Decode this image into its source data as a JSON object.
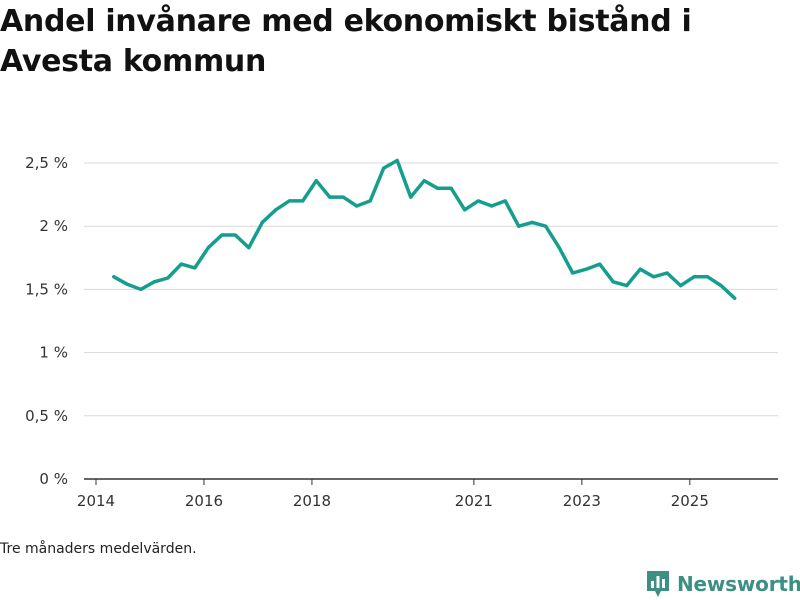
{
  "title": "Andel invånare med ekonomiskt bistånd i Avesta kommun",
  "footnote": "Tre månaders medelvärden.",
  "brand": {
    "name": "Newsworthy",
    "color": "#3d8f83",
    "icon": "bar-chart-logo-icon"
  },
  "colors": {
    "line": "#159e8e",
    "grid": "#d9d9d9",
    "axis": "#333333"
  },
  "chart_data": {
    "type": "line",
    "title": "Andel invånare med ekonomiskt bistånd i Avesta kommun",
    "xlabel": "",
    "ylabel": "",
    "unit": "%",
    "ylim": [
      0,
      2.5
    ],
    "xlim": [
      2014.0,
      2026.3
    ],
    "yticks": [
      {
        "value": 0,
        "label": "0 %"
      },
      {
        "value": 0.5,
        "label": "0,5 %"
      },
      {
        "value": 1,
        "label": "1 %"
      },
      {
        "value": 1.5,
        "label": "1,5 %"
      },
      {
        "value": 2,
        "label": "2 %"
      },
      {
        "value": 2.5,
        "label": "2,5 %"
      }
    ],
    "xticks": [
      {
        "value": 2014.0,
        "label": "2014"
      },
      {
        "value": 2016.0,
        "label": "2016"
      },
      {
        "value": 2018.0,
        "label": "2018"
      },
      {
        "value": 2021.0,
        "label": "2021"
      },
      {
        "value": 2023.0,
        "label": "2023"
      },
      {
        "value": 2025.0,
        "label": "2025"
      }
    ],
    "grid": true,
    "series": [
      {
        "name": "Andel invånare med ekonomiskt bistånd",
        "x": [
          2014.33,
          2014.58,
          2014.83,
          2015.08,
          2015.33,
          2015.58,
          2015.83,
          2016.08,
          2016.33,
          2016.58,
          2016.83,
          2017.08,
          2017.33,
          2017.58,
          2017.83,
          2018.08,
          2018.33,
          2018.58,
          2018.83,
          2019.08,
          2019.33,
          2019.58,
          2019.83,
          2020.08,
          2020.33,
          2020.58,
          2020.83,
          2021.08,
          2021.33,
          2021.58,
          2021.83,
          2022.08,
          2022.33,
          2022.58,
          2022.83,
          2023.08,
          2023.33,
          2023.58,
          2023.83,
          2024.08,
          2024.33,
          2024.58,
          2024.83,
          2025.08,
          2025.33,
          2025.58,
          2025.83
        ],
        "values": [
          1.6,
          1.54,
          1.5,
          1.56,
          1.59,
          1.7,
          1.67,
          1.83,
          1.93,
          1.93,
          1.83,
          2.03,
          2.13,
          2.2,
          2.2,
          2.36,
          2.23,
          2.23,
          2.16,
          2.2,
          2.46,
          2.52,
          2.23,
          2.36,
          2.3,
          2.3,
          2.13,
          2.2,
          2.16,
          2.2,
          2.0,
          2.03,
          2.0,
          1.83,
          1.63,
          1.66,
          1.7,
          1.56,
          1.53,
          1.66,
          1.6,
          1.63,
          1.53,
          1.6,
          1.6,
          1.53,
          1.43
        ]
      }
    ]
  }
}
